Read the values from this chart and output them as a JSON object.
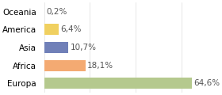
{
  "categories": [
    "Europa",
    "Africa",
    "Asia",
    "America",
    "Oceania"
  ],
  "values": [
    64.6,
    18.1,
    10.7,
    6.4,
    0.2
  ],
  "labels": [
    "64,6%",
    "18,1%",
    "10,7%",
    "6,4%",
    "0,2%"
  ],
  "bar_colors": [
    "#b5c98e",
    "#f4aa72",
    "#7080b8",
    "#f0d060",
    "#f4aa72"
  ],
  "background_color": "#ffffff",
  "xlim": [
    0,
    75
  ],
  "label_fontsize": 7.5,
  "tick_fontsize": 7.5
}
